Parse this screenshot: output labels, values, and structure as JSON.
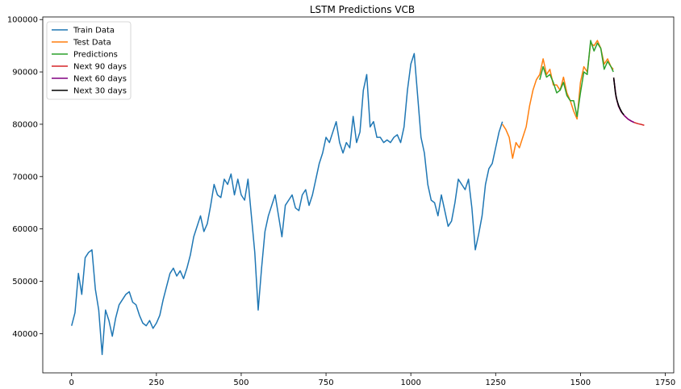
{
  "chart_data": {
    "type": "line",
    "title": "LSTM Predictions VCB",
    "xlabel": "",
    "ylabel": "",
    "xlim": [
      -85,
      1775
    ],
    "ylim": [
      32500,
      100500
    ],
    "xticks": [
      0,
      250,
      500,
      750,
      1000,
      1250,
      1500,
      1750
    ],
    "xtick_labels": [
      "0",
      "250",
      "500",
      "750",
      "1000",
      "1250",
      "1500",
      "1750"
    ],
    "yticks": [
      40000,
      50000,
      60000,
      70000,
      80000,
      90000,
      100000
    ],
    "ytick_labels": [
      "40000",
      "50000",
      "60000",
      "70000",
      "80000",
      "90000",
      "100000"
    ],
    "grid": false,
    "legend_position": "top-left",
    "series": [
      {
        "name": "Train Data",
        "color": "#1f77b4",
        "x": [
          0,
          10,
          20,
          30,
          40,
          50,
          60,
          70,
          80,
          90,
          100,
          110,
          120,
          130,
          140,
          150,
          160,
          170,
          180,
          190,
          200,
          210,
          220,
          230,
          240,
          250,
          260,
          270,
          280,
          290,
          300,
          310,
          320,
          330,
          340,
          350,
          360,
          370,
          380,
          390,
          400,
          410,
          420,
          430,
          440,
          450,
          460,
          470,
          480,
          490,
          500,
          510,
          520,
          530,
          540,
          550,
          560,
          570,
          580,
          590,
          600,
          610,
          620,
          630,
          640,
          650,
          660,
          670,
          680,
          690,
          700,
          710,
          720,
          730,
          740,
          750,
          760,
          770,
          780,
          790,
          800,
          810,
          820,
          830,
          840,
          850,
          860,
          870,
          880,
          890,
          900,
          910,
          920,
          930,
          940,
          950,
          960,
          970,
          980,
          990,
          1000,
          1010,
          1020,
          1030,
          1040,
          1050,
          1060,
          1070,
          1080,
          1090,
          1100,
          1110,
          1120,
          1130,
          1140,
          1150,
          1160,
          1170,
          1180,
          1190,
          1200,
          1210,
          1220,
          1230,
          1240,
          1250,
          1260,
          1270
        ],
        "values": [
          41500,
          44000,
          51500,
          47500,
          54500,
          55500,
          56000,
          48500,
          44500,
          36000,
          44500,
          42500,
          39500,
          43000,
          45500,
          46500,
          47500,
          48000,
          46000,
          45500,
          43500,
          42000,
          41500,
          42500,
          41000,
          42000,
          43500,
          46500,
          49000,
          51500,
          52500,
          51000,
          52000,
          50500,
          52500,
          55000,
          58500,
          60500,
          62500,
          59500,
          61000,
          64500,
          68500,
          66500,
          66000,
          69500,
          68500,
          70500,
          66500,
          69500,
          66500,
          65500,
          69500,
          62500,
          55500,
          44500,
          52500,
          59500,
          62500,
          64500,
          66500,
          62500,
          58500,
          64500,
          65500,
          66500,
          64000,
          63500,
          66500,
          67500,
          64500,
          66500,
          69500,
          72500,
          74500,
          77500,
          76500,
          78500,
          80500,
          76500,
          74500,
          76500,
          75500,
          81500,
          76500,
          78500,
          86500,
          89500,
          79500,
          80500,
          77500,
          77500,
          76500,
          77000,
          76500,
          77500,
          78000,
          76500,
          79500,
          86500,
          91500,
          93500,
          85500,
          77500,
          74500,
          68500,
          65500,
          65000,
          62500,
          66500,
          63500,
          60500,
          61500,
          65000,
          69500,
          68500,
          67500,
          69500,
          64000,
          56000,
          59000,
          62500,
          68500,
          71500,
          72500,
          75500,
          78500,
          80500
        ]
      },
      {
        "name": "Test Data",
        "color": "#ff7f0e",
        "x": [
          1270,
          1280,
          1290,
          1300,
          1310,
          1320,
          1330,
          1340,
          1350,
          1360,
          1370,
          1380,
          1390,
          1400,
          1410,
          1420,
          1430,
          1440,
          1450,
          1460,
          1470,
          1480,
          1490,
          1500,
          1510,
          1520,
          1530,
          1540,
          1550,
          1560,
          1570,
          1580,
          1590,
          1597
        ],
        "values": [
          80000,
          79000,
          77500,
          73500,
          76500,
          75500,
          77500,
          79500,
          83500,
          86500,
          88500,
          89500,
          92500,
          89500,
          90500,
          87500,
          87500,
          86500,
          89000,
          86000,
          84500,
          82500,
          81000,
          88000,
          91000,
          90000,
          95500,
          95000,
          96000,
          94500,
          91500,
          92500,
          91000,
          90500
        ]
      },
      {
        "name": "Predictions",
        "color": "#2ca02c",
        "x": [
          1380,
          1390,
          1400,
          1410,
          1420,
          1430,
          1440,
          1450,
          1460,
          1470,
          1480,
          1490,
          1500,
          1510,
          1520,
          1530,
          1540,
          1550,
          1560,
          1570,
          1580,
          1590,
          1597
        ],
        "values": [
          88500,
          91000,
          89000,
          89500,
          88000,
          86000,
          86500,
          88000,
          85500,
          84500,
          84500,
          81500,
          86000,
          90000,
          89500,
          96000,
          94000,
          95500,
          94500,
          90500,
          92000,
          91000,
          90000
        ]
      },
      {
        "name": "Next 90 days",
        "color": "#d62728",
        "x": [
          1598,
          1605,
          1612,
          1620,
          1630,
          1640,
          1650,
          1660,
          1670,
          1680,
          1688
        ],
        "values": [
          88900,
          85200,
          83500,
          82400,
          81600,
          81000,
          80600,
          80300,
          80100,
          79950,
          79800
        ]
      },
      {
        "name": "Next 60 days",
        "color": "#800080",
        "x": [
          1598,
          1605,
          1612,
          1620,
          1630,
          1640,
          1650,
          1658
        ],
        "values": [
          88900,
          85200,
          83500,
          82400,
          81600,
          81000,
          80600,
          80350
        ]
      },
      {
        "name": "Next 30 days",
        "color": "#000000",
        "x": [
          1598,
          1603,
          1608,
          1613,
          1618,
          1623,
          1628
        ],
        "values": [
          88900,
          86000,
          84500,
          83500,
          82800,
          82200,
          81800
        ]
      }
    ]
  }
}
